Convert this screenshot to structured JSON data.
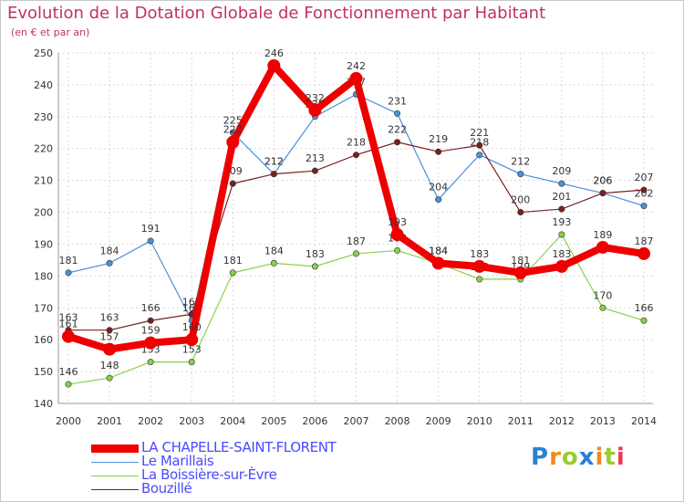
{
  "title": "Evolution de la Dotation Globale de Fonctionnement par Habitant",
  "subtitle": "(en € et par an)",
  "logo": {
    "text": "Proxiti",
    "colors": [
      "#2d7fd0",
      "#f08a1c",
      "#9acb2f",
      "#2d7fd0",
      "#f08a1c",
      "#9acb2f",
      "#e83a5a"
    ]
  },
  "chart_data": {
    "type": "line",
    "x": [
      "2000",
      "2001",
      "2002",
      "2003",
      "2004",
      "2005",
      "2006",
      "2007",
      "2008",
      "2009",
      "2010",
      "2011",
      "2012",
      "2013",
      "2014"
    ],
    "ylim": [
      140,
      250
    ],
    "yticks": [
      140,
      150,
      160,
      170,
      180,
      190,
      200,
      210,
      220,
      230,
      240,
      250
    ],
    "grid": true,
    "legend_position": "bottom-left",
    "series": [
      {
        "name": "Le Marillais",
        "color": "#4a90d9",
        "values": [
          181,
          184,
          191,
          166,
          225,
          212,
          230,
          237,
          231,
          204,
          218,
          212,
          209,
          206,
          202
        ]
      },
      {
        "name": "La Boissière-sur-Èvre",
        "color": "#88d048",
        "values": [
          146,
          148,
          153,
          153,
          181,
          184,
          183,
          187,
          188,
          184,
          179,
          179,
          193,
          170,
          166
        ]
      },
      {
        "name": "Bouzillé",
        "color": "#7a2020",
        "values": [
          163,
          163,
          166,
          168,
          209,
          212,
          213,
          218,
          222,
          219,
          221,
          200,
          201,
          206,
          207
        ]
      },
      {
        "name": "LA CHAPELLE-SAINT-FLORENT",
        "color": "#ee0000",
        "values": [
          161,
          157,
          159,
          160,
          222,
          246,
          232,
          242,
          193,
          184,
          183,
          181,
          183,
          189,
          187
        ]
      }
    ],
    "legend_order": [
      "LA CHAPELLE-SAINT-FLORENT",
      "Le Marillais",
      "La Boissière-sur-Èvre",
      "Bouzillé"
    ]
  }
}
